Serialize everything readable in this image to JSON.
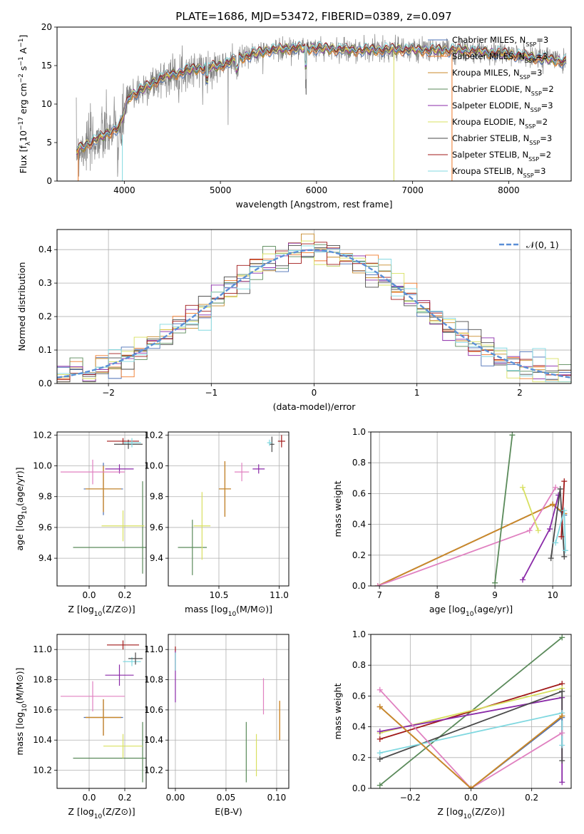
{
  "title": "PLATE=1686, MJD=53472, FIBERID=0389, z=0.097",
  "legend_spectrum": [
    {
      "name": "Chabrier MILES, N",
      "sub": "SSP",
      "tail": "=3",
      "color": "#4a6fb5"
    },
    {
      "name": "Salpeter MILES, N",
      "sub": "SSP",
      "tail": "=3",
      "color": "#f07a2a"
    },
    {
      "name": "Kroupa MILES, N",
      "sub": "SSP",
      "tail": "=3",
      "color": "#c88a2a"
    },
    {
      "name": "Chabrier ELODIE, N",
      "sub": "SSP",
      "tail": "=2",
      "color": "#5a8a5a"
    },
    {
      "name": "Salpeter ELODIE, N",
      "sub": "SSP",
      "tail": "=3",
      "color": "#8a2aa8"
    },
    {
      "name": "Kroupa ELODIE, N",
      "sub": "SSP",
      "tail": "=2",
      "color": "#d8e060"
    },
    {
      "name": "Chabrier STELIB, N",
      "sub": "SSP",
      "tail": "=3",
      "color": "#4a4a4a"
    },
    {
      "name": "Salpeter STELIB, N",
      "sub": "SSP",
      "tail": "=2",
      "color": "#a01818"
    },
    {
      "name": "Kroupa STELIB, N",
      "sub": "SSP",
      "tail": "=3",
      "color": "#80d8e0"
    }
  ],
  "colors": {
    "data_gray": "#808080",
    "gaussian": "#5b8fd6",
    "pink": "#e080c0",
    "grid": "#b0b0b0"
  },
  "chart_data": [
    {
      "id": "spectrum",
      "type": "line",
      "title": "PLATE=1686, MJD=53472, FIBERID=0389, z=0.097",
      "xlabel": "wavelength [Angstrom, rest frame]",
      "ylabel": "Flux [f_λ 10^-17 erg cm^-2 s^-1 A^-1]",
      "xlim": [
        3300,
        8650
      ],
      "ylim": [
        0,
        20
      ],
      "xticks": [
        "4000",
        "5000",
        "6000",
        "7000",
        "8000"
      ],
      "yticks": [
        "0",
        "5",
        "10",
        "15",
        "20"
      ],
      "grid": false,
      "legend": "right",
      "continuum_points": [
        [
          3500,
          4
        ],
        [
          3650,
          5
        ],
        [
          3800,
          6
        ],
        [
          3950,
          7
        ],
        [
          4050,
          11
        ],
        [
          4200,
          12
        ],
        [
          4400,
          13.5
        ],
        [
          4700,
          14.5
        ],
        [
          5000,
          15
        ],
        [
          5200,
          16
        ],
        [
          5500,
          17
        ],
        [
          5800,
          17.3
        ],
        [
          6100,
          17.2
        ],
        [
          6400,
          17
        ],
        [
          6800,
          17.1
        ],
        [
          7200,
          17
        ],
        [
          7500,
          17
        ],
        [
          8000,
          16.5
        ],
        [
          8600,
          15.5
        ]
      ]
    },
    {
      "id": "residual_histogram",
      "type": "line",
      "xlabel": "(data-model)/error",
      "ylabel": "Normed distribution",
      "xlim": [
        -2.5,
        2.5
      ],
      "ylim": [
        0,
        0.46
      ],
      "xticks": [
        "−2",
        "−1",
        "0",
        "1",
        "2"
      ],
      "yticks": [
        "0.0",
        "0.1",
        "0.2",
        "0.3",
        "0.4"
      ],
      "grid": true,
      "legend": "top-right",
      "legend_label": "𝒩(0, 1)",
      "bin_width": 0.125
    },
    {
      "id": "age_vs_Z",
      "type": "scatter",
      "xlabel": "Z [log10(Z/Z⊙)]",
      "ylabel": "age  [log10(age/yr)]",
      "xlim": [
        -0.18,
        0.32
      ],
      "ylim": [
        9.22,
        10.22
      ],
      "xticks": [
        "0.0",
        "0.2"
      ],
      "yticks": [
        "9.4",
        "9.6",
        "9.8",
        "10.0",
        "10.2"
      ],
      "grid": true,
      "points": [
        {
          "x": 0.08,
          "y": 9.85,
          "xerr": 0.11,
          "yerr": 0.17,
          "color": "#4a6fb5"
        },
        {
          "x": 0.08,
          "y": 9.85,
          "xerr": 0.1,
          "yerr": 0.15,
          "color": "#f07a2a"
        },
        {
          "x": 0.08,
          "y": 9.85,
          "xerr": 0.1,
          "yerr": 0.15,
          "color": "#c88a2a"
        },
        {
          "x": 0.18,
          "y": 9.47,
          "xerr": 0.27,
          "yerr": 0.0,
          "color": "#5a8a5a"
        },
        {
          "x": 0.3,
          "y": 9.6,
          "xerr": 0.0,
          "yerr": 0.3,
          "color": "#5a8a5a"
        },
        {
          "x": 0.17,
          "y": 9.98,
          "xerr": 0.08,
          "yerr": 0.03,
          "color": "#8a2aa8"
        },
        {
          "x": 0.19,
          "y": 9.61,
          "xerr": 0.12,
          "yerr": 0.1,
          "color": "#d8e060"
        },
        {
          "x": 0.22,
          "y": 10.14,
          "xerr": 0.08,
          "yerr": 0.03,
          "color": "#4a4a4a"
        },
        {
          "x": 0.19,
          "y": 10.16,
          "xerr": 0.09,
          "yerr": 0.02,
          "color": "#a01818"
        },
        {
          "x": 0.24,
          "y": 10.15,
          "xerr": 0.05,
          "yerr": 0.03,
          "color": "#80d8e0"
        },
        {
          "x": 0.02,
          "y": 9.96,
          "xerr": 0.18,
          "yerr": 0.08,
          "color": "#e080c0"
        }
      ]
    },
    {
      "id": "age_vs_mass",
      "type": "scatter",
      "xlabel": "mass [log10(M/M⊙)]",
      "ylabel": "",
      "xlim": [
        10.08,
        11.08
      ],
      "ylim": [
        9.22,
        10.22
      ],
      "xticks": [
        "10.5",
        "11.0"
      ],
      "yticks": [
        "9.4",
        "9.6",
        "9.8",
        "10.0",
        "10.2"
      ],
      "grid": true,
      "points": [
        {
          "x": 10.55,
          "y": 9.85,
          "xerr": 0.05,
          "yerr": 0.18,
          "color": "#4a6fb5"
        },
        {
          "x": 10.55,
          "y": 9.85,
          "xerr": 0.05,
          "yerr": 0.18,
          "color": "#f07a2a"
        },
        {
          "x": 10.55,
          "y": 9.85,
          "xerr": 0.05,
          "yerr": 0.18,
          "color": "#c88a2a"
        },
        {
          "x": 10.28,
          "y": 9.47,
          "xerr": 0.12,
          "yerr": 0.18,
          "color": "#5a8a5a"
        },
        {
          "x": 10.36,
          "y": 9.61,
          "xerr": 0.07,
          "yerr": 0.22,
          "color": "#d8e060"
        },
        {
          "x": 10.83,
          "y": 9.98,
          "xerr": 0.05,
          "yerr": 0.03,
          "color": "#8a2aa8"
        },
        {
          "x": 10.69,
          "y": 9.96,
          "xerr": 0.06,
          "yerr": 0.06,
          "color": "#e080c0"
        },
        {
          "x": 10.94,
          "y": 10.14,
          "xerr": 0.02,
          "yerr": 0.05,
          "color": "#4a4a4a"
        },
        {
          "x": 11.02,
          "y": 10.16,
          "xerr": 0.03,
          "yerr": 0.04,
          "color": "#a01818"
        },
        {
          "x": 10.92,
          "y": 10.15,
          "xerr": 0.02,
          "yerr": 0.02,
          "color": "#80d8e0"
        }
      ]
    },
    {
      "id": "weight_vs_age",
      "type": "line",
      "xlabel": "age  [log10(age/yr)]",
      "ylabel": "mass weight",
      "xlim": [
        6.85,
        10.32
      ],
      "ylim": [
        0,
        1
      ],
      "xticks": [
        "7",
        "8",
        "9",
        "10"
      ],
      "yticks": [
        "0.0",
        "0.2",
        "0.4",
        "0.6",
        "0.8",
        "1.0"
      ],
      "grid": true,
      "series": [
        {
          "color": "#4a6fb5",
          "x": [
            6.97,
            10.0,
            10.2
          ],
          "y": [
            0.0,
            0.53,
            0.46
          ]
        },
        {
          "color": "#f07a2a",
          "x": [
            6.97,
            10.0,
            10.2
          ],
          "y": [
            0.0,
            0.53,
            0.47
          ]
        },
        {
          "color": "#c88a2a",
          "x": [
            6.97,
            10.0,
            10.2
          ],
          "y": [
            0.0,
            0.53,
            0.47
          ]
        },
        {
          "color": "#e080c0",
          "x": [
            6.97,
            9.6,
            10.05
          ],
          "y": [
            0.0,
            0.36,
            0.64
          ]
        },
        {
          "color": "#5a8a5a",
          "x": [
            9.0,
            9.3
          ],
          "y": [
            0.02,
            0.98
          ]
        },
        {
          "color": "#8a2aa8",
          "x": [
            9.48,
            9.95,
            10.1
          ],
          "y": [
            0.04,
            0.37,
            0.59
          ]
        },
        {
          "color": "#d8e060",
          "x": [
            9.48,
            9.75
          ],
          "y": [
            0.64,
            0.36
          ]
        },
        {
          "color": "#4a4a4a",
          "x": [
            9.97,
            10.13,
            10.2
          ],
          "y": [
            0.18,
            0.63,
            0.19
          ]
        },
        {
          "color": "#a01818",
          "x": [
            10.15,
            10.2
          ],
          "y": [
            0.32,
            0.68
          ]
        },
        {
          "color": "#80d8e0",
          "x": [
            10.05,
            10.2,
            10.22
          ],
          "y": [
            0.28,
            0.49,
            0.23
          ]
        }
      ]
    },
    {
      "id": "mass_vs_Z",
      "type": "scatter",
      "xlabel": "Z [log10(Z/Z⊙)]",
      "ylabel": "mass [log10(M/M⊙)]",
      "xlim": [
        -0.18,
        0.32
      ],
      "ylim": [
        10.08,
        11.1
      ],
      "xticks": [
        "0.0",
        "0.2"
      ],
      "yticks": [
        "10.2",
        "10.4",
        "10.6",
        "10.8",
        "11.0"
      ],
      "grid": true,
      "points": [
        {
          "x": 0.08,
          "y": 10.55,
          "xerr": 0.11,
          "yerr": 0.12,
          "color": "#4a6fb5"
        },
        {
          "x": 0.08,
          "y": 10.55,
          "xerr": 0.1,
          "yerr": 0.12,
          "color": "#f07a2a"
        },
        {
          "x": 0.08,
          "y": 10.55,
          "xerr": 0.1,
          "yerr": 0.12,
          "color": "#c88a2a"
        },
        {
          "x": 0.18,
          "y": 10.28,
          "xerr": 0.27,
          "yerr": 0.0,
          "color": "#5a8a5a"
        },
        {
          "x": 0.3,
          "y": 10.32,
          "xerr": 0.0,
          "yerr": 0.2,
          "color": "#5a8a5a"
        },
        {
          "x": 0.19,
          "y": 10.36,
          "xerr": 0.11,
          "yerr": 0.08,
          "color": "#d8e060"
        },
        {
          "x": 0.17,
          "y": 10.83,
          "xerr": 0.08,
          "yerr": 0.07,
          "color": "#8a2aa8"
        },
        {
          "x": 0.02,
          "y": 10.69,
          "xerr": 0.18,
          "yerr": 0.1,
          "color": "#e080c0"
        },
        {
          "x": 0.19,
          "y": 11.03,
          "xerr": 0.09,
          "yerr": 0.03,
          "color": "#a01818"
        },
        {
          "x": 0.24,
          "y": 10.92,
          "xerr": 0.05,
          "yerr": 0.03,
          "color": "#80d8e0"
        },
        {
          "x": 0.26,
          "y": 10.94,
          "xerr": 0.04,
          "yerr": 0.04,
          "color": "#4a4a4a"
        }
      ]
    },
    {
      "id": "mass_vs_ebv",
      "type": "scatter",
      "xlabel": "E(B-V)",
      "ylabel": "",
      "xlim": [
        -0.007,
        0.112
      ],
      "ylim": [
        10.08,
        11.1
      ],
      "xticks": [
        "0.00",
        "0.05",
        "0.10"
      ],
      "yticks": [
        "10.2",
        "10.4",
        "10.6",
        "10.8",
        "11.0"
      ],
      "grid": true,
      "points": [
        {
          "x": 0.0,
          "y": 10.94,
          "xerr": 0.0,
          "yerr": 0.08,
          "color": "#a01818"
        },
        {
          "x": 0.0,
          "y": 10.82,
          "xerr": 0.0,
          "yerr": 0.17,
          "color": "#8a2aa8"
        },
        {
          "x": 0.0,
          "y": 10.92,
          "xerr": 0.0,
          "yerr": 0.06,
          "color": "#80d8e0"
        },
        {
          "x": 0.07,
          "y": 10.32,
          "xerr": 0.0,
          "yerr": 0.2,
          "color": "#5a8a5a"
        },
        {
          "x": 0.08,
          "y": 10.3,
          "xerr": 0.0,
          "yerr": 0.14,
          "color": "#d8e060"
        },
        {
          "x": 0.087,
          "y": 10.69,
          "xerr": 0.0,
          "yerr": 0.12,
          "color": "#e080c0"
        },
        {
          "x": 0.103,
          "y": 10.53,
          "xerr": 0.0,
          "yerr": 0.13,
          "color": "#f07a2a"
        },
        {
          "x": 0.103,
          "y": 10.53,
          "xerr": 0.0,
          "yerr": 0.13,
          "color": "#c88a2a"
        }
      ]
    },
    {
      "id": "weight_vs_Z",
      "type": "line",
      "xlabel": "Z [log10(Z/Z⊙)]",
      "ylabel": "mass weight",
      "xlim": [
        -0.33,
        0.33
      ],
      "ylim": [
        0,
        1
      ],
      "xticks": [
        "−0.2",
        "0.0",
        "0.2"
      ],
      "yticks": [
        "0.0",
        "0.2",
        "0.4",
        "0.6",
        "0.8",
        "1.0"
      ],
      "grid": true,
      "series": [
        {
          "color": "#5a8a5a",
          "x": [
            -0.3,
            0.3
          ],
          "y": [
            0.02,
            0.98
          ]
        },
        {
          "color": "#a01818",
          "x": [
            -0.3,
            0.3
          ],
          "y": [
            0.32,
            0.68
          ]
        },
        {
          "color": "#d8e060",
          "x": [
            -0.3,
            0.3
          ],
          "y": [
            0.36,
            0.65
          ]
        },
        {
          "color": "#8a2aa8",
          "x": [
            -0.3,
            0.3,
            0.3
          ],
          "y": [
            0.37,
            0.59,
            0.04
          ]
        },
        {
          "color": "#4a4a4a",
          "x": [
            -0.3,
            0.3,
            0.3
          ],
          "y": [
            0.19,
            0.63,
            0.18
          ]
        },
        {
          "color": "#80d8e0",
          "x": [
            -0.3,
            0.3,
            0.3
          ],
          "y": [
            0.23,
            0.49,
            0.28
          ]
        },
        {
          "color": "#e080c0",
          "x": [
            -0.3,
            0.0,
            0.3
          ],
          "y": [
            0.64,
            0.0,
            0.36
          ]
        },
        {
          "color": "#4a6fb5",
          "x": [
            -0.3,
            0.0,
            0.3
          ],
          "y": [
            0.53,
            0.0,
            0.46
          ]
        },
        {
          "color": "#f07a2a",
          "x": [
            -0.3,
            0.0,
            0.3
          ],
          "y": [
            0.53,
            0.0,
            0.47
          ]
        },
        {
          "color": "#c88a2a",
          "x": [
            -0.3,
            0.0,
            0.3
          ],
          "y": [
            0.53,
            0.0,
            0.47
          ]
        }
      ]
    }
  ]
}
